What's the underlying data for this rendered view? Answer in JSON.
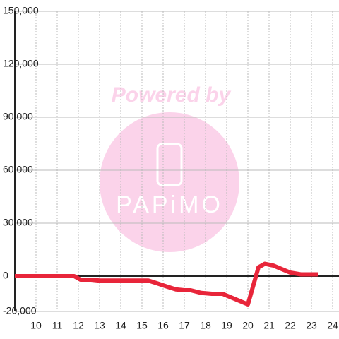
{
  "chart_data": {
    "type": "line",
    "watermark": {
      "text": "Powered by",
      "logo": "PAPiMO"
    },
    "x": [
      9,
      10,
      11,
      11.8,
      12.1,
      12.6,
      13,
      14,
      15,
      15.3,
      15.7,
      16.2,
      16.6,
      17,
      17.3,
      17.8,
      18.3,
      18.8,
      19.2,
      19.6,
      20,
      20.5,
      20.8,
      21.2,
      21.6,
      22,
      22.5,
      23.3
    ],
    "series": [
      {
        "color": "#e8253a",
        "values": [
          0,
          0,
          0,
          0,
          -2000,
          -2000,
          -2500,
          -2500,
          -2500,
          -2500,
          -4000,
          -6000,
          -7500,
          -8000,
          -8000,
          -9500,
          -10000,
          -10000,
          -12000,
          -14000,
          -16000,
          5000,
          7000,
          6000,
          4000,
          2000,
          1000,
          1000
        ]
      }
    ],
    "xlim": [
      9,
      24.3
    ],
    "xticks": [
      10,
      11,
      12,
      13,
      14,
      15,
      16,
      17,
      18,
      19,
      20,
      21,
      22,
      23,
      24
    ],
    "ylim": [
      -20000,
      150000
    ],
    "yticks": [
      {
        "value": -20000,
        "label": "-20,000"
      },
      0,
      {
        "value": 30000,
        "label": "30,000"
      },
      {
        "value": 60000,
        "label": "60,000"
      },
      {
        "value": 90000,
        "label": "90,000"
      },
      {
        "value": 120000,
        "label": "120,000"
      },
      {
        "value": 150000,
        "label": "150,000"
      }
    ],
    "grid": true
  }
}
